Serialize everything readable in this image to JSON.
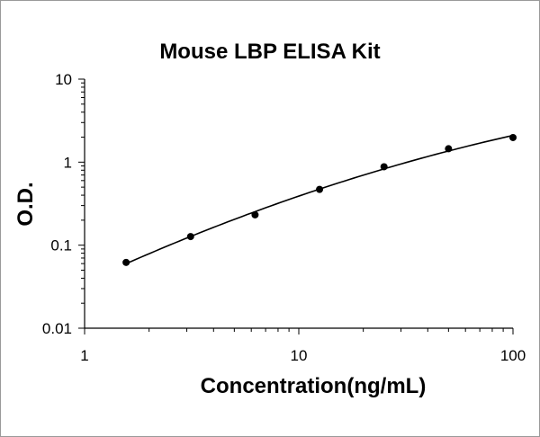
{
  "chart_data": {
    "type": "scatter",
    "title": "Mouse LBP ELISA Kit",
    "xlabel": "Concentration(ng/mL)",
    "ylabel": "O.D.",
    "x_scale": "log",
    "y_scale": "log",
    "xlim": [
      1,
      100
    ],
    "ylim": [
      0.01,
      10
    ],
    "x_ticks": [
      "1",
      "10",
      "100"
    ],
    "y_ticks": [
      "0.01",
      "0.1",
      "1",
      "10"
    ],
    "grid": false,
    "legend": "none",
    "series": [
      {
        "x": [
          1.5625,
          3.125,
          6.25,
          12.5,
          25,
          50,
          100
        ],
        "y": [
          0.062,
          0.127,
          0.232,
          0.47,
          0.88,
          1.45,
          1.98
        ],
        "trendline": true
      }
    ]
  }
}
